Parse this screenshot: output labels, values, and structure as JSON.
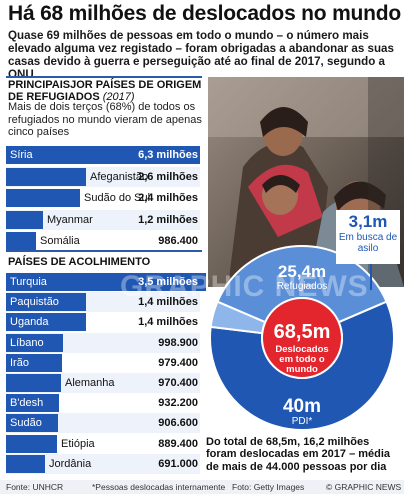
{
  "title": "Há 68 milhões de deslocados no mundo",
  "intro": "Quase 69 milhões de pessoas em todo o mundo – o número mais elevado alguma vez registado – foram obrigadas a abandonar as suas casas devido à guerra e perseguição até ao final de 2017, segundo a ONU",
  "section1": {
    "heading": "PRINCIPAISJOR PAÍSES DE ORIGEM DE REFUGIADOS",
    "heading_year": "(2017)",
    "note": "Mais de dois terços (68%) de todos os refugiados no mundo vieram de apenas cinco países"
  },
  "section2": {
    "heading": "PAÍSES DE ACOLHIMENTO"
  },
  "colors": {
    "bar": "#1f57b3",
    "light_blue": "#5a8fd8",
    "red": "#e3262d",
    "rule": "#2b5aa8"
  },
  "chart_data": [
    {
      "type": "bar",
      "orientation": "horizontal",
      "title": "PRINCIPAISJOR PAÍSES DE ORIGEM DE REFUGIADOS (2017)",
      "categories": [
        "Síria",
        "Afeganistão",
        "Sudão do Sul",
        "Myanmar",
        "Somália"
      ],
      "values": [
        6300000,
        2600000,
        2400000,
        1200000,
        986400
      ],
      "value_labels": [
        "6,3 milhões",
        "2,6 milhões",
        "2,4 milhões",
        "1,2 milhões",
        "986.400"
      ]
    },
    {
      "type": "bar",
      "orientation": "horizontal",
      "title": "PAÍSES DE ACOLHIMENTO",
      "categories": [
        "Turquia",
        "Paquistão",
        "Uganda",
        "Líbano",
        "Irão",
        "Alemanha",
        "B'desh",
        "Sudão",
        "Etiópia",
        "Jordânia"
      ],
      "values": [
        3500000,
        1400000,
        1400000,
        998900,
        979400,
        970400,
        932200,
        906600,
        889400,
        691000
      ],
      "value_labels": [
        "3,5 milhões",
        "1,4 milhões",
        "1,4 milhões",
        "998.900",
        "979.400",
        "970.400",
        "932.200",
        "906.600",
        "889.400",
        "691.000"
      ]
    },
    {
      "type": "pie",
      "total_label": "68,5m",
      "total_caption": "Deslocados em todo o mundo",
      "slices": [
        {
          "name": "Refugiados",
          "value": 25.4,
          "label": "25,4m"
        },
        {
          "name": "PDI*",
          "value": 40,
          "label": "40m"
        },
        {
          "name": "Em busca de asilo",
          "value": 3.1,
          "label": "3,1m"
        }
      ]
    }
  ],
  "donut_note": "Do total de 68,5m, 16,2 milhões foram deslocadas em 2017 – média de mais de 44.000 pessoas por dia",
  "watermark": "GRAPHIC NEWS",
  "footer": {
    "source": "Fonte: UNHCR",
    "footnote": "*Pessoas deslocadas internamente",
    "photo": "Foto: Getty Images",
    "copyright": "© GRAPHIC NEWS"
  }
}
